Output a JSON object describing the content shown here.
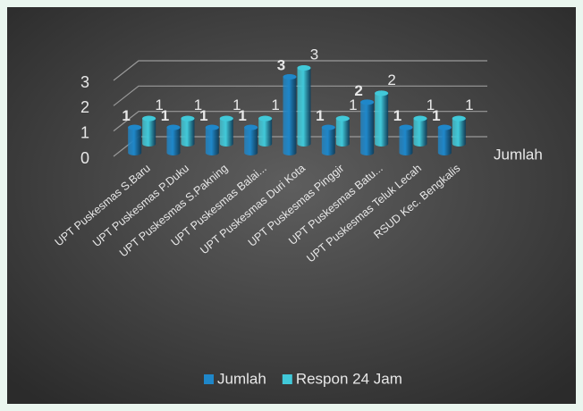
{
  "chart_data": {
    "type": "bar3d",
    "categories": [
      "UPT Puskesmas S.Baru",
      "UPT Puskesmas P.Duku",
      "UPT Puskesmas S.Pakning",
      "UPT Puskesmas Balai...",
      "UPT Puskesmas Duri Kota",
      "UPT Puskesmas Pinggir",
      "UPT Puskesmas Batu...",
      "UPT Puskesmas Teluk Lecah",
      "RSUD Kec. Bengkalis"
    ],
    "series": [
      {
        "name": "Jumlah",
        "color": "#1f87c9",
        "values": [
          1,
          1,
          1,
          1,
          3,
          1,
          2,
          1,
          1
        ]
      },
      {
        "name": "Respon 24 Jam",
        "color": "#41c9d9",
        "values": [
          1,
          1,
          1,
          1,
          3,
          1,
          2,
          1,
          1
        ]
      }
    ],
    "depth_axis_label": "Jumlah",
    "ylim": [
      0,
      3
    ],
    "yticks": [
      0,
      1,
      2,
      3
    ],
    "grid": true,
    "legend": "bottom"
  }
}
